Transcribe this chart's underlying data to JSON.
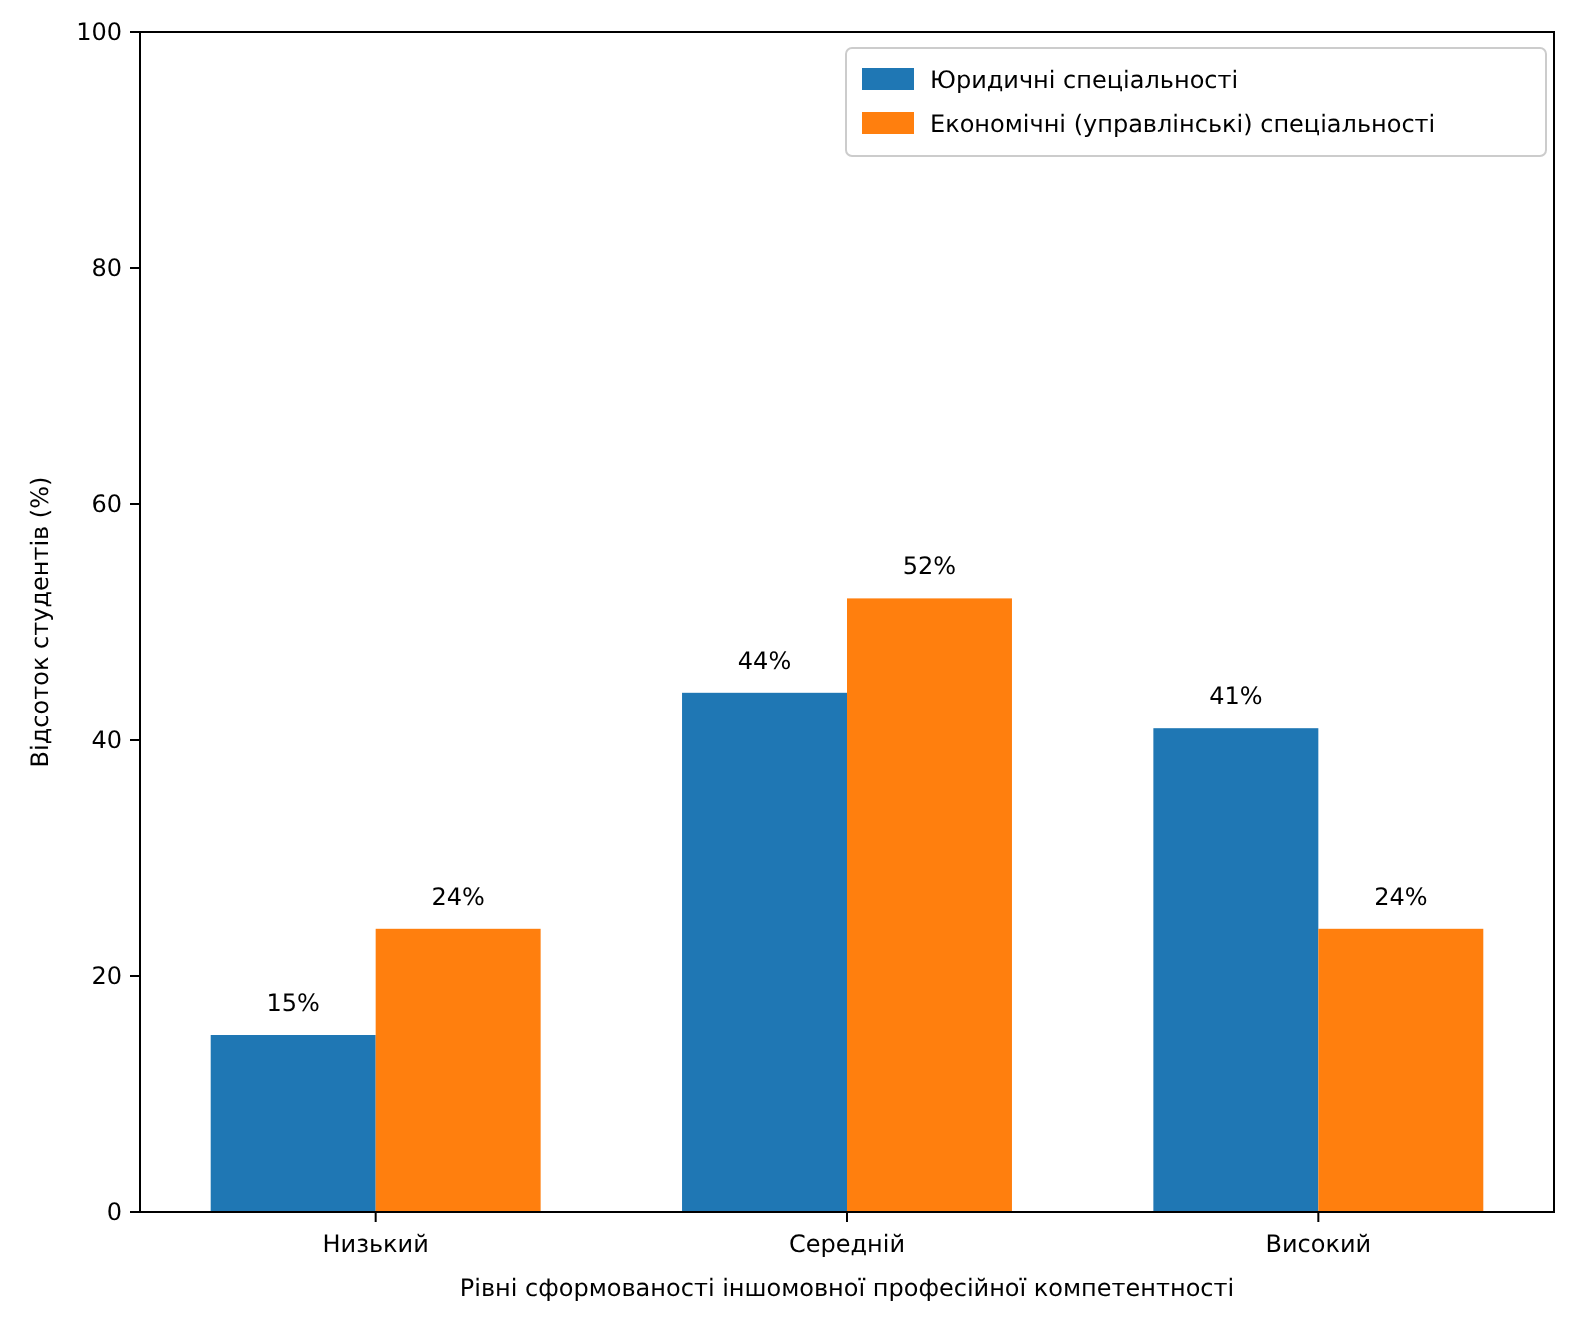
{
  "chart_data": {
    "type": "bar",
    "xlabel": "Рівні сформованості іншомовної професійної компетентності",
    "ylabel": "Відсоток студентів (%)",
    "categories": [
      "Низький",
      "Середній",
      "Високий"
    ],
    "series": [
      {
        "name": "Юридичні спеціальності",
        "color": "#1f77b4",
        "values": [
          15,
          44,
          41
        ],
        "value_labels": [
          "15%",
          "44%",
          "41%"
        ]
      },
      {
        "name": "Економічні (управлінські) спеціальності",
        "color": "#ff7f0e",
        "values": [
          24,
          52,
          24
        ],
        "value_labels": [
          "24%",
          "52%",
          "24%"
        ]
      }
    ],
    "ylim": [
      0,
      100
    ],
    "yticks": [
      0,
      20,
      40,
      60,
      80,
      100
    ],
    "grid": false,
    "legend": "top right"
  }
}
